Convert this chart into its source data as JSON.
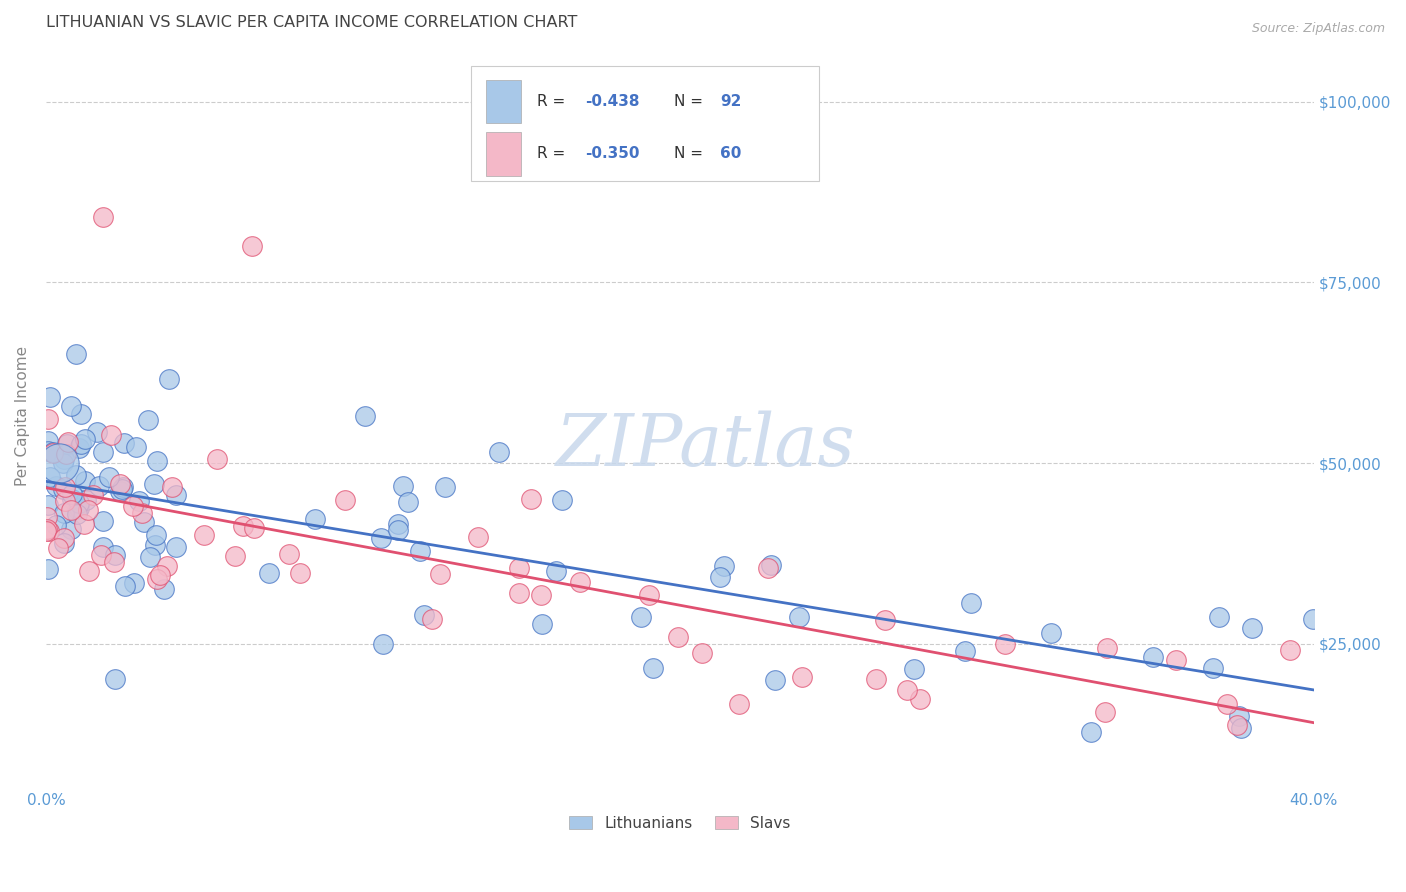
{
  "title": "LITHUANIAN VS SLAVIC PER CAPITA INCOME CORRELATION CHART",
  "source": "Source: ZipAtlas.com",
  "ylabel": "Per Capita Income",
  "watermark": "ZIPatlas",
  "xmin": 0.0,
  "xmax": 0.4,
  "ymin": 5000,
  "ymax": 108000,
  "blue_color": "#a8c8e8",
  "pink_color": "#f4b8c8",
  "line_blue": "#4472c4",
  "line_pink": "#e05070",
  "grid_color": "#cccccc",
  "background_color": "#ffffff",
  "tick_label_color": "#5b9bd5",
  "title_color": "#444444"
}
